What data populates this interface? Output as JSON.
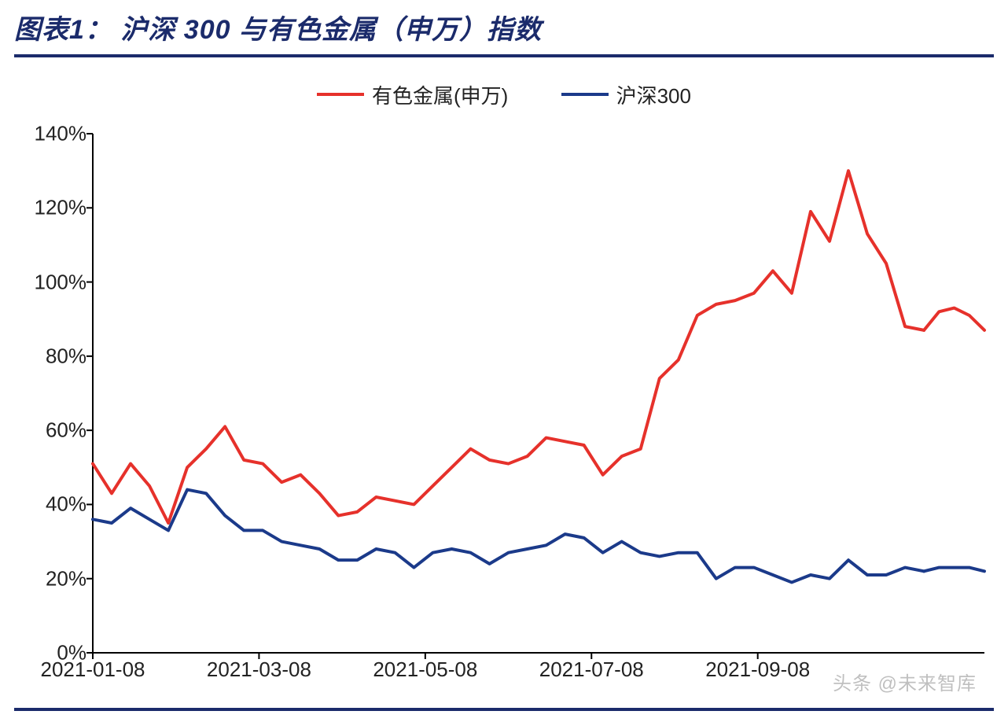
{
  "title": "图表1：  沪深 300 与有色金属（申万）指数",
  "title_color": "#1b2b6b",
  "title_fontsize": 34,
  "legend": {
    "items": [
      {
        "label": "有色金属(申万)",
        "color": "#e6312b"
      },
      {
        "label": "沪深300",
        "color": "#1b3a8a"
      }
    ],
    "line_width": 4,
    "fontsize": 26
  },
  "chart": {
    "type": "line",
    "background_color": "#ffffff",
    "axis_color": "#000000",
    "axis_width": 2,
    "tick_length": 8,
    "y": {
      "min": 0,
      "max": 140,
      "step": 20,
      "ticks": [
        0,
        20,
        40,
        60,
        80,
        100,
        120,
        140
      ],
      "labels": [
        "0%",
        "20%",
        "40%",
        "60%",
        "80%",
        "100%",
        "120%",
        "140%"
      ],
      "label_fontsize": 26,
      "grid": false
    },
    "x": {
      "min": 0,
      "max": 44,
      "step": 1,
      "tick_positions": [
        0,
        8.8,
        17.6,
        26.4,
        35.2
      ],
      "tick_labels": [
        "2021-01-08",
        "2021-03-08",
        "2021-05-08",
        "2021-07-08",
        "2021-09-08"
      ],
      "label_fontsize": 26,
      "grid": false
    },
    "series": [
      {
        "name": "有色金属(申万)",
        "color": "#e6312b",
        "line_width": 4,
        "x": [
          0,
          1,
          2,
          3,
          4,
          5,
          6,
          7,
          8,
          9,
          10,
          11,
          12,
          13,
          14,
          15,
          16,
          17,
          18,
          19,
          20,
          21,
          22,
          23,
          24,
          25,
          26,
          27,
          28,
          29,
          30,
          31,
          32,
          33,
          34,
          35,
          36,
          37,
          38,
          39,
          40,
          41,
          42,
          43,
          44
        ],
        "y": [
          51,
          43,
          51,
          45,
          35,
          50,
          55,
          61,
          52,
          51,
          46,
          48,
          43,
          37,
          38,
          42,
          41,
          40,
          45,
          50,
          55,
          52,
          51,
          53,
          58,
          57,
          56,
          48,
          53,
          55,
          74,
          79,
          91,
          94,
          95,
          97,
          103,
          97,
          119,
          111,
          130,
          113,
          105,
          88,
          87
        ]
      },
      {
        "name": "有色金属(申万)-tail",
        "color": "#e6312b",
        "line_width": 4,
        "x": [
          44,
          44.8,
          45.6,
          46.4,
          47.2
        ],
        "y": [
          87,
          92,
          93,
          91,
          87
        ]
      },
      {
        "name": "沪深300",
        "color": "#1b3a8a",
        "line_width": 4,
        "x": [
          0,
          1,
          2,
          3,
          4,
          5,
          6,
          7,
          8,
          9,
          10,
          11,
          12,
          13,
          14,
          15,
          16,
          17,
          18,
          19,
          20,
          21,
          22,
          23,
          24,
          25,
          26,
          27,
          28,
          29,
          30,
          31,
          32,
          33,
          34,
          35,
          36,
          37,
          38,
          39,
          40,
          41,
          42,
          43,
          44
        ],
        "y": [
          36,
          35,
          39,
          36,
          33,
          44,
          43,
          37,
          33,
          33,
          30,
          29,
          28,
          25,
          25,
          28,
          27,
          23,
          27,
          28,
          27,
          24,
          27,
          28,
          29,
          32,
          31,
          27,
          30,
          27,
          26,
          27,
          27,
          20,
          23,
          23,
          21,
          19,
          21,
          20,
          25,
          21,
          21,
          23,
          22
        ]
      },
      {
        "name": "沪深300-tail",
        "color": "#1b3a8a",
        "line_width": 4,
        "x": [
          44,
          44.8,
          45.6,
          46.4,
          47.2
        ],
        "y": [
          22,
          23,
          23,
          23,
          22
        ]
      }
    ],
    "x_draw_max": 47.2
  },
  "watermark": "头条 @未来智库",
  "bottom_rule_color": "#1b2b6b"
}
